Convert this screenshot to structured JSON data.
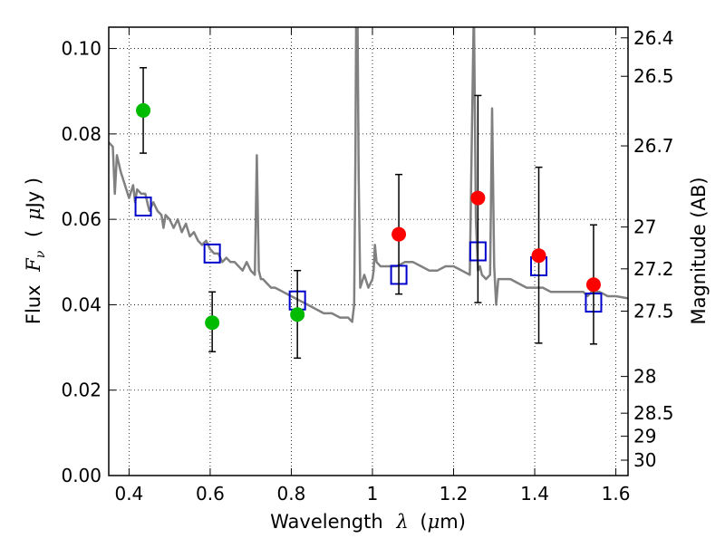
{
  "chart_data": {
    "type": "scatter",
    "xlabel_prefix": "Wavelength",
    "xlabel_symbol": "λ",
    "xlabel_unit_open": "(",
    "xlabel_unit_mu": "μ",
    "xlabel_unit_rest": "m)",
    "ylabel_prefix": "Flux",
    "ylabel_symbol": "F",
    "ylabel_subscript": "ν",
    "ylabel_unit_open": "(",
    "ylabel_unit_mu": "μ",
    "ylabel_unit_rest": "Jy )",
    "y2label": "Magnitude (AB)",
    "xlim": [
      0.35,
      1.63
    ],
    "ylim": [
      0.0,
      0.105
    ],
    "grid": true,
    "x_ticks": [
      {
        "value": 0.4,
        "label": "0.4"
      },
      {
        "value": 0.6,
        "label": "0.6"
      },
      {
        "value": 0.8,
        "label": "0.8"
      },
      {
        "value": 1.0,
        "label": "1"
      },
      {
        "value": 1.2,
        "label": "1.2"
      },
      {
        "value": 1.4,
        "label": "1.4"
      },
      {
        "value": 1.6,
        "label": "1.6"
      }
    ],
    "y_ticks": [
      {
        "value": 0.0,
        "label": "0.00"
      },
      {
        "value": 0.02,
        "label": "0.02"
      },
      {
        "value": 0.04,
        "label": "0.04"
      },
      {
        "value": 0.06,
        "label": "0.06"
      },
      {
        "value": 0.08,
        "label": "0.08"
      },
      {
        "value": 0.1,
        "label": "0.10"
      }
    ],
    "mag_ticks": [
      {
        "flux": 0.1025,
        "label": "26.4"
      },
      {
        "flux": 0.0935,
        "label": "26.5"
      },
      {
        "flux": 0.0772,
        "label": "26.7"
      },
      {
        "flux": 0.0582,
        "label": "27"
      },
      {
        "flux": 0.0484,
        "label": "27.2"
      },
      {
        "flux": 0.0385,
        "label": "27.5"
      },
      {
        "flux": 0.0232,
        "label": "28"
      },
      {
        "flux": 0.0146,
        "label": "28.5"
      },
      {
        "flux": 0.0092,
        "label": "29"
      },
      {
        "flux": 0.0036,
        "label": "30"
      }
    ],
    "series": [
      {
        "kind": "line",
        "color": "#808080",
        "x": [
          0.35,
          0.36,
          0.365,
          0.37,
          0.375,
          0.38,
          0.39,
          0.4,
          0.41,
          0.415,
          0.42,
          0.43,
          0.44,
          0.45,
          0.46,
          0.47,
          0.48,
          0.485,
          0.49,
          0.5,
          0.51,
          0.52,
          0.53,
          0.54,
          0.55,
          0.56,
          0.57,
          0.58,
          0.59,
          0.6,
          0.61,
          0.62,
          0.63,
          0.64,
          0.65,
          0.66,
          0.67,
          0.68,
          0.69,
          0.7,
          0.71,
          0.715,
          0.72,
          0.725,
          0.73,
          0.74,
          0.75,
          0.76,
          0.78,
          0.8,
          0.82,
          0.84,
          0.86,
          0.88,
          0.9,
          0.92,
          0.94,
          0.95,
          0.955,
          0.958,
          0.96,
          0.963,
          0.966,
          0.97,
          0.98,
          0.99,
          1.0,
          1.003,
          1.006,
          1.01,
          1.02,
          1.04,
          1.06,
          1.08,
          1.1,
          1.12,
          1.14,
          1.16,
          1.18,
          1.2,
          1.22,
          1.24,
          1.245,
          1.25,
          1.255,
          1.26,
          1.265,
          1.27,
          1.28,
          1.29,
          1.295,
          1.3,
          1.305,
          1.31,
          1.32,
          1.34,
          1.36,
          1.38,
          1.4,
          1.42,
          1.44,
          1.46,
          1.48,
          1.5,
          1.52,
          1.53,
          1.54,
          1.56,
          1.58,
          1.6,
          1.63
        ],
        "y": [
          0.078,
          0.077,
          0.066,
          0.075,
          0.073,
          0.071,
          0.068,
          0.065,
          0.068,
          0.064,
          0.067,
          0.066,
          0.066,
          0.062,
          0.064,
          0.062,
          0.061,
          0.058,
          0.061,
          0.06,
          0.058,
          0.06,
          0.057,
          0.059,
          0.056,
          0.057,
          0.055,
          0.054,
          0.055,
          0.053,
          0.052,
          0.052,
          0.05,
          0.051,
          0.05,
          0.05,
          0.049,
          0.048,
          0.05,
          0.048,
          0.047,
          0.075,
          0.048,
          0.046,
          0.046,
          0.045,
          0.044,
          0.044,
          0.043,
          0.042,
          0.041,
          0.04,
          0.039,
          0.038,
          0.038,
          0.037,
          0.037,
          0.036,
          0.04,
          0.075,
          0.11,
          0.11,
          0.07,
          0.044,
          0.047,
          0.044,
          0.046,
          0.048,
          0.054,
          0.05,
          0.049,
          0.049,
          0.049,
          0.05,
          0.05,
          0.049,
          0.048,
          0.048,
          0.049,
          0.049,
          0.048,
          0.047,
          0.08,
          0.11,
          0.06,
          0.048,
          0.049,
          0.047,
          0.046,
          0.047,
          0.086,
          0.049,
          0.04,
          0.046,
          0.046,
          0.046,
          0.045,
          0.044,
          0.044,
          0.044,
          0.043,
          0.043,
          0.043,
          0.043,
          0.043,
          0.042,
          0.043,
          0.043,
          0.042,
          0.042,
          0.0415
        ]
      },
      {
        "kind": "markers",
        "marker": "open-square",
        "color": "#0000cc",
        "x": [
          0.435,
          0.605,
          0.815,
          1.065,
          1.26,
          1.41,
          1.545
        ],
        "y": [
          0.063,
          0.052,
          0.041,
          0.047,
          0.0525,
          0.049,
          0.0405
        ]
      },
      {
        "kind": "markers",
        "marker": "filled-circle",
        "color": "#00bb00",
        "x": [
          0.435,
          0.605,
          0.815
        ],
        "y": [
          0.0855,
          0.0358,
          0.0377
        ],
        "yerr_low": [
          0.0755,
          0.029,
          0.0275
        ],
        "yerr_high": [
          0.0955,
          0.043,
          0.048
        ]
      },
      {
        "kind": "markers",
        "marker": "filled-circle",
        "color": "#ff0000",
        "x": [
          1.065,
          1.26,
          1.41,
          1.545
        ],
        "y": [
          0.0565,
          0.065,
          0.0515,
          0.0447
        ],
        "yerr_low": [
          0.0425,
          0.0405,
          0.031,
          0.0308
        ],
        "yerr_high": [
          0.0705,
          0.089,
          0.0722,
          0.0587
        ]
      }
    ]
  }
}
